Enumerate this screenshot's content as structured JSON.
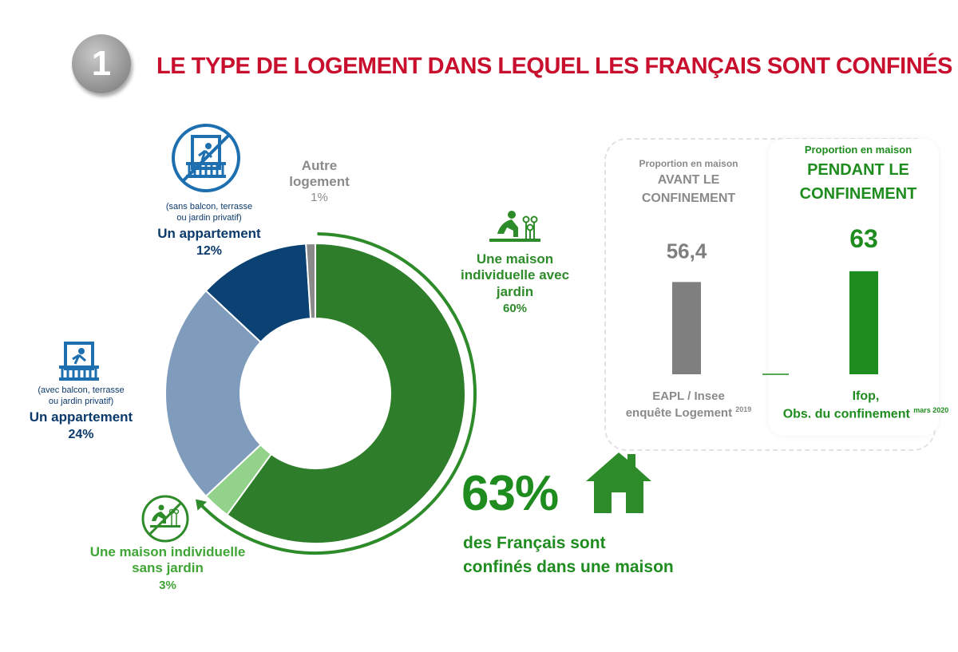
{
  "header": {
    "number": "1",
    "title": "LE TYPE DE LOGEMENT DANS LEQUEL LES FRANÇAIS SONT CONFINÉS"
  },
  "chart_data": [
    {
      "type": "pie",
      "slices": [
        {
          "label": "Une maison individuelle avec jardin",
          "value": 60,
          "color": "#2e7d2a"
        },
        {
          "label": "Une maison individuelle sans jardin",
          "value": 3,
          "color": "#92d28a"
        },
        {
          "label": "Un appartement (avec balcon, terrasse ou jardin privatif)",
          "value": 24,
          "color": "#7f9cbd"
        },
        {
          "label": "Un appartement (sans balcon, terrasse ou jardin privatif)",
          "value": 12,
          "color": "#0b4173"
        },
        {
          "label": "Autre logement",
          "value": 1,
          "color": "#8a8a8a"
        }
      ],
      "hole": 0.5
    },
    {
      "type": "bar",
      "categories": [
        "AVANT LE CONFINEMENT",
        "PENDANT LE CONFINEMENT"
      ],
      "values": [
        56.4,
        63
      ],
      "value_labels": [
        "56,4",
        "63"
      ],
      "colors": [
        "#7f7f7f",
        "#1e8c1e"
      ],
      "ylim": [
        0,
        100
      ]
    }
  ],
  "labels": {
    "autre": {
      "line1": "Autre",
      "line2": "logement",
      "pct": "1%"
    },
    "appart_sans": {
      "note1": "(sans balcon, terrasse",
      "note2": "ou jardin privatif)",
      "name": "Un appartement",
      "pct": "12%"
    },
    "appart_avec": {
      "note1": "(avec balcon, terrasse",
      "note2": "ou jardin privatif)",
      "name": "Un appartement",
      "pct": "24%"
    },
    "maison_jardin": {
      "line1": "Une maison",
      "line2": "individuelle avec",
      "line3": "jardin",
      "pct": "60%"
    },
    "maison_sans": {
      "line1": "Une maison individuelle",
      "line2": "sans jardin",
      "pct": "3%"
    }
  },
  "highlight": {
    "big": "63%",
    "line1": "des Français sont",
    "line2": "confinés dans une maison"
  },
  "panel": {
    "left": {
      "small": "Proportion en maison",
      "title1": "AVANT LE",
      "title2": "CONFINEMENT",
      "source1": "EAPL / Insee",
      "source2": "enquête Logement",
      "source_sup": "2019"
    },
    "right": {
      "small": "Proportion en maison",
      "title1": "PENDANT LE",
      "title2": "CONFINEMENT",
      "source1": "Ifop,",
      "source2": "Obs. du confinement",
      "source_sup": "mars 2020"
    }
  },
  "colors": {
    "title_red": "#c8102e",
    "green_dark": "#2e7d2a",
    "green_light": "#92d28a",
    "blue_light": "#7f9cbd",
    "navy": "#0b4173",
    "grey": "#8a8a8a"
  }
}
